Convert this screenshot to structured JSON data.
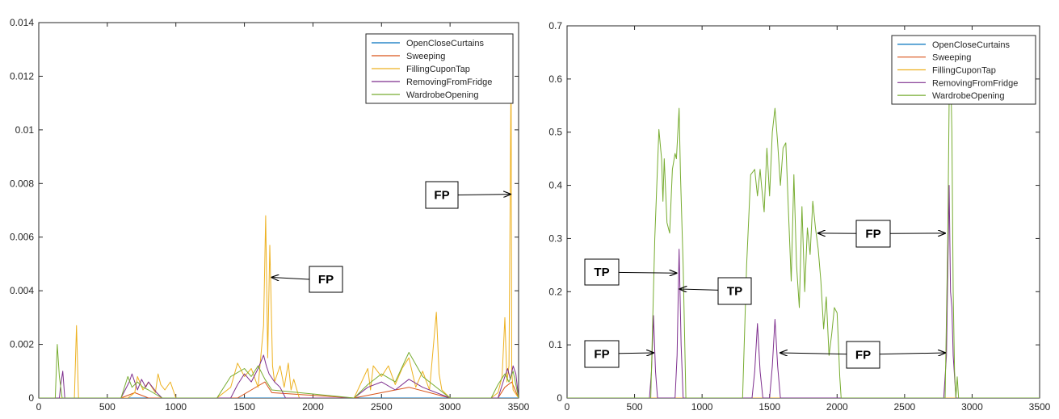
{
  "chart_data": [
    {
      "type": "line",
      "title": "",
      "xlabel": "",
      "ylabel": "",
      "xlim": [
        0,
        3500
      ],
      "ylim": [
        0,
        0.014
      ],
      "xticks": [
        0,
        500,
        1000,
        1500,
        2000,
        2500,
        3000,
        3500
      ],
      "yticks": [
        0,
        0.002,
        0.004,
        0.006,
        0.008,
        0.01,
        0.012,
        0.014
      ],
      "xtick_labels": [
        "0",
        "500",
        "1000",
        "1500",
        "2000",
        "2500",
        "3000",
        "3500"
      ],
      "ytick_labels": [
        "0",
        "0.002",
        "0.004",
        "0.006",
        "0.008",
        "0.01",
        "0.012",
        "0.014"
      ],
      "grid": false,
      "legend_position": "top-right",
      "series": [
        {
          "name": "OpenCloseCurtains",
          "color": "#0072bd",
          "x": [
            0,
            3500
          ],
          "y": [
            0,
            0
          ]
        },
        {
          "name": "Sweeping",
          "color": "#d95319",
          "x": [
            0,
            600,
            700,
            800,
            1450,
            1550,
            1650,
            1700,
            2300,
            2500,
            2700,
            3000,
            3350,
            3400,
            3450,
            3500
          ],
          "y": [
            0,
            0,
            0.0002,
            0,
            0,
            0.0003,
            0.0006,
            0.0002,
            0,
            0.0002,
            0.0004,
            0,
            0,
            0.0004,
            0.0006,
            0
          ]
        },
        {
          "name": "FillingCuponTap",
          "color": "#edb120",
          "x": [
            0,
            260,
            275,
            290,
            650,
            700,
            720,
            760,
            800,
            850,
            870,
            890,
            920,
            960,
            1000,
            1300,
            1400,
            1450,
            1500,
            1550,
            1600,
            1640,
            1655,
            1670,
            1685,
            1695,
            1705,
            1720,
            1760,
            1790,
            1820,
            1840,
            1860,
            1900,
            2300,
            2400,
            2420,
            2440,
            2500,
            2550,
            2600,
            2650,
            2700,
            2750,
            2800,
            2850,
            2900,
            2920,
            2940,
            3000,
            3300,
            3350,
            3380,
            3400,
            3415,
            3430,
            3445,
            3450,
            3460,
            3500
          ],
          "y": [
            0,
            0,
            0.0027,
            0,
            0,
            0.0002,
            0.0008,
            0.0003,
            0.0006,
            0.0002,
            0.0009,
            0.0005,
            0.0003,
            0.0006,
            0,
            0,
            0.0004,
            0.0013,
            0.0008,
            0.0011,
            0.0004,
            0.0027,
            0.0068,
            0.0015,
            0.0057,
            0.0035,
            0.0012,
            0.0006,
            0.0012,
            0.0004,
            0.0013,
            0.0003,
            0.0007,
            0,
            0,
            0.0011,
            0.0003,
            0.0012,
            0.0008,
            0.0012,
            0.0005,
            0.0011,
            0.0015,
            0.0004,
            0.001,
            0.0003,
            0.0032,
            0.0009,
            0.0003,
            0,
            0,
            0.0002,
            0.0008,
            0.003,
            0.0006,
            0.0012,
            0.0124,
            0.001,
            0.0003,
            0
          ]
        },
        {
          "name": "RemovingFromFridge",
          "color": "#7e2f8e",
          "x": [
            0,
            150,
            160,
            175,
            190,
            600,
            660,
            680,
            720,
            750,
            780,
            800,
            860,
            900,
            1400,
            1450,
            1500,
            1550,
            1600,
            1640,
            1660,
            1680,
            1720,
            1760,
            1800,
            2300,
            2400,
            2500,
            2600,
            2700,
            2800,
            3000,
            3350,
            3400,
            3420,
            3440,
            3460,
            3480,
            3500
          ],
          "y": [
            0,
            0,
            0.0005,
            0.001,
            0,
            0,
            0.0006,
            0.0009,
            0.0003,
            0.0007,
            0.0004,
            0.0006,
            0.0002,
            0,
            0,
            0.0005,
            0.0009,
            0.0006,
            0.0011,
            0.0016,
            0.0012,
            0.0009,
            0.0006,
            0.0004,
            0,
            0,
            0.0004,
            0.0006,
            0.0003,
            0.0007,
            0.0004,
            0,
            0,
            0.0008,
            0.0011,
            0.0007,
            0.0012,
            0.0009,
            0
          ]
        },
        {
          "name": "WardrobeOpening",
          "color": "#77ac30",
          "x": [
            0,
            120,
            135,
            150,
            170,
            600,
            650,
            680,
            720,
            760,
            800,
            900,
            1300,
            1400,
            1500,
            1550,
            1600,
            1650,
            1700,
            2300,
            2400,
            2500,
            2600,
            2700,
            2800,
            3000,
            3300,
            3350,
            3400,
            3430,
            3460,
            3500
          ],
          "y": [
            0,
            0,
            0.002,
            0.0008,
            0,
            0,
            0.0008,
            0.0004,
            0.0006,
            0.0004,
            0.0003,
            0,
            0,
            0.0008,
            0.0011,
            0.0008,
            0.0012,
            0.0007,
            0.0003,
            0,
            0.0005,
            0.0009,
            0.0006,
            0.0017,
            0.0008,
            0,
            0,
            0.0005,
            0.0009,
            0.0006,
            0.001,
            0
          ]
        }
      ],
      "annotations": [
        {
          "text": "FP",
          "arrow_to": [
            1700,
            0.0045
          ],
          "direction": "left"
        },
        {
          "text": "FP",
          "arrow_to": [
            3440,
            0.0076
          ],
          "direction": "right"
        }
      ]
    },
    {
      "type": "line",
      "title": "",
      "xlabel": "",
      "ylabel": "",
      "xlim": [
        0,
        3500
      ],
      "ylim": [
        0,
        0.7
      ],
      "xticks": [
        0,
        500,
        1000,
        1500,
        2000,
        2500,
        3000,
        3500
      ],
      "yticks": [
        0,
        0.1,
        0.2,
        0.3,
        0.4,
        0.5,
        0.6,
        0.7
      ],
      "xtick_labels": [
        "0",
        "500",
        "1000",
        "1500",
        "2000",
        "2500",
        "3000",
        "3500"
      ],
      "ytick_labels": [
        "0",
        "0.1",
        "0.2",
        "0.3",
        "0.4",
        "0.5",
        "0.6",
        "0.7"
      ],
      "grid": false,
      "legend_position": "top-right",
      "series": [
        {
          "name": "OpenCloseCurtains",
          "color": "#0072bd",
          "x": [
            0,
            3500
          ],
          "y": [
            0,
            0
          ]
        },
        {
          "name": "Sweeping",
          "color": "#d95319",
          "x": [
            0,
            3500
          ],
          "y": [
            0,
            0
          ]
        },
        {
          "name": "FillingCuponTap",
          "color": "#edb120",
          "x": [
            0,
            3500
          ],
          "y": [
            0,
            0
          ]
        },
        {
          "name": "RemovingFromFridge",
          "color": "#7e2f8e",
          "x": [
            0,
            610,
            625,
            640,
            655,
            670,
            800,
            815,
            830,
            845,
            860,
            1370,
            1390,
            1410,
            1430,
            1450,
            1500,
            1520,
            1540,
            1560,
            1580,
            2790,
            2810,
            2830,
            2840,
            2850,
            2860,
            2880,
            3500
          ],
          "y": [
            0,
            0,
            0.05,
            0.155,
            0.05,
            0,
            0,
            0.08,
            0.28,
            0.1,
            0,
            0,
            0.05,
            0.14,
            0.05,
            0,
            0,
            0.06,
            0.148,
            0.06,
            0,
            0,
            0.08,
            0.4,
            0.2,
            0.17,
            0.08,
            0,
            0
          ]
        },
        {
          "name": "WardrobeOpening",
          "color": "#77ac30",
          "x": [
            0,
            620,
            650,
            680,
            700,
            710,
            720,
            740,
            760,
            780,
            800,
            810,
            830,
            840,
            860,
            880,
            1300,
            1330,
            1360,
            1390,
            1410,
            1430,
            1440,
            1460,
            1480,
            1500,
            1520,
            1540,
            1560,
            1580,
            1600,
            1620,
            1640,
            1660,
            1680,
            1700,
            1720,
            1740,
            1760,
            1780,
            1800,
            1820,
            1840,
            1860,
            1880,
            1900,
            1920,
            1940,
            1960,
            1980,
            2000,
            2010,
            2020,
            2030,
            2800,
            2820,
            2830,
            2840,
            2850,
            2860,
            2870,
            2880,
            2890,
            2900,
            3500
          ],
          "y": [
            0,
            0,
            0.3,
            0.505,
            0.45,
            0.37,
            0.45,
            0.33,
            0.31,
            0.43,
            0.46,
            0.45,
            0.545,
            0.42,
            0.25,
            0,
            0,
            0.25,
            0.42,
            0.43,
            0.38,
            0.43,
            0.4,
            0.35,
            0.47,
            0.38,
            0.5,
            0.545,
            0.48,
            0.4,
            0.47,
            0.48,
            0.35,
            0.22,
            0.42,
            0.25,
            0.17,
            0.36,
            0.2,
            0.32,
            0.27,
            0.37,
            0.32,
            0.28,
            0.22,
            0.13,
            0.19,
            0.08,
            0.12,
            0.17,
            0.16,
            0.1,
            0.04,
            0,
            0,
            0.3,
            0.56,
            0.63,
            0.5,
            0.2,
            0.05,
            0,
            0.04,
            0,
            0
          ]
        }
      ],
      "annotations": [
        {
          "text": "TP",
          "arrow_to": [
            810,
            0.235
          ],
          "direction": "left"
        },
        {
          "text": "TP",
          "arrow_to": [
            835,
            0.205
          ],
          "direction": "right"
        },
        {
          "text": "FP",
          "arrow_to": [
            640,
            0.085
          ],
          "direction": "left"
        },
        {
          "text": "FP",
          "arrow_to": [
            1580,
            0.085
          ],
          "direction": "right"
        },
        {
          "text": "FP",
          "arrow_to": [
            2800,
            0.085
          ],
          "direction": "left"
        },
        {
          "text": "FP",
          "arrow_to": [
            1860,
            0.31
          ],
          "direction": "right"
        },
        {
          "text": "FP",
          "arrow_to": [
            2800,
            0.31
          ],
          "direction": "left"
        }
      ]
    }
  ]
}
